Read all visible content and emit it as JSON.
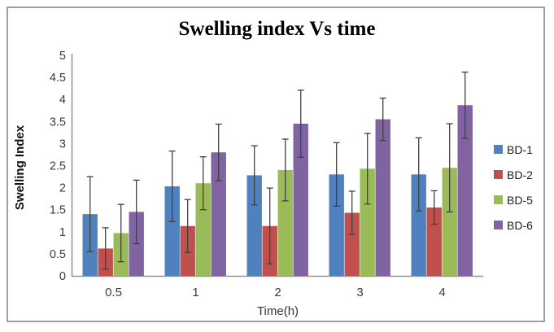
{
  "chart_data": {
    "type": "bar",
    "title": "Swelling index Vs time",
    "xlabel": "Time(h)",
    "ylabel": "Swelling Index",
    "categories": [
      "0.5",
      "1",
      "2",
      "3",
      "4"
    ],
    "ylim": [
      0,
      5
    ],
    "yticks": [
      "0",
      "0.5",
      "1",
      "1.5",
      "2",
      "2.5",
      "3",
      "3.5",
      "4",
      "4.5",
      "5"
    ],
    "grid": false,
    "legend_position": "right",
    "error_bars": true,
    "series": [
      {
        "name": "BD-1",
        "color": "#4F81BD",
        "values": [
          1.4,
          2.03,
          2.28,
          2.3,
          2.3
        ],
        "errors": [
          0.85,
          0.8,
          0.67,
          0.72,
          0.83
        ]
      },
      {
        "name": "BD-2",
        "color": "#C0504D",
        "values": [
          0.62,
          1.13,
          1.13,
          1.43,
          1.55
        ],
        "errors": [
          0.47,
          0.6,
          0.86,
          0.49,
          0.38
        ]
      },
      {
        "name": "BD-5",
        "color": "#9BBB59",
        "values": [
          0.97,
          2.1,
          2.4,
          2.43,
          2.45
        ],
        "errors": [
          0.65,
          0.6,
          0.7,
          0.8,
          1.0
        ]
      },
      {
        "name": "BD-6",
        "color": "#8064A2",
        "values": [
          1.45,
          2.8,
          3.45,
          3.55,
          3.87
        ],
        "errors": [
          0.72,
          0.64,
          0.76,
          0.48,
          0.75
        ]
      }
    ],
    "axis_color": "#969696",
    "error_bar_color": "#404040",
    "text_color": "#3b3b3b"
  }
}
